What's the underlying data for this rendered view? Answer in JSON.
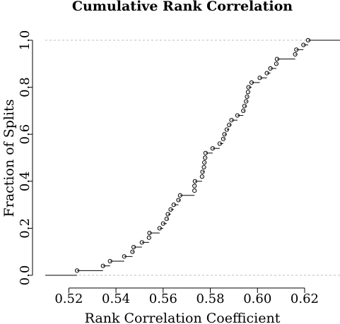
{
  "chart_data": {
    "type": "ecdf",
    "title": "Cumulative Rank Correlation",
    "xlabel": "Rank Correlation Coefficient",
    "ylabel": "Fraction of Splits",
    "xlim": [
      0.51,
      0.635
    ],
    "ylim": [
      0.0,
      1.0
    ],
    "x_ticks": [
      0.52,
      0.54,
      0.56,
      0.58,
      0.6,
      0.62
    ],
    "x_tick_labels": [
      "0.52",
      "0.54",
      "0.56",
      "0.58",
      "0.60",
      "0.62"
    ],
    "y_ticks": [
      0.0,
      0.2,
      0.4,
      0.6,
      0.8,
      1.0
    ],
    "y_tick_labels": [
      "0.0",
      "0.2",
      "0.4",
      "0.6",
      "0.8",
      "1.0"
    ],
    "reference_lines": [
      0.0,
      1.0
    ],
    "grid": false,
    "points": [
      {
        "x": 0.5235,
        "y": 0.02
      },
      {
        "x": 0.5345,
        "y": 0.04
      },
      {
        "x": 0.5375,
        "y": 0.06
      },
      {
        "x": 0.5435,
        "y": 0.08
      },
      {
        "x": 0.547,
        "y": 0.1
      },
      {
        "x": 0.5475,
        "y": 0.12
      },
      {
        "x": 0.551,
        "y": 0.14
      },
      {
        "x": 0.554,
        "y": 0.16
      },
      {
        "x": 0.5542,
        "y": 0.18
      },
      {
        "x": 0.5585,
        "y": 0.2
      },
      {
        "x": 0.56,
        "y": 0.22
      },
      {
        "x": 0.5615,
        "y": 0.24
      },
      {
        "x": 0.562,
        "y": 0.26
      },
      {
        "x": 0.5632,
        "y": 0.28
      },
      {
        "x": 0.5645,
        "y": 0.3
      },
      {
        "x": 0.5665,
        "y": 0.32
      },
      {
        "x": 0.5672,
        "y": 0.34
      },
      {
        "x": 0.5733,
        "y": 0.36
      },
      {
        "x": 0.5733,
        "y": 0.38
      },
      {
        "x": 0.5735,
        "y": 0.4
      },
      {
        "x": 0.5765,
        "y": 0.42
      },
      {
        "x": 0.5767,
        "y": 0.44
      },
      {
        "x": 0.5773,
        "y": 0.46
      },
      {
        "x": 0.5775,
        "y": 0.48
      },
      {
        "x": 0.5778,
        "y": 0.5
      },
      {
        "x": 0.578,
        "y": 0.52
      },
      {
        "x": 0.581,
        "y": 0.54
      },
      {
        "x": 0.584,
        "y": 0.56
      },
      {
        "x": 0.5855,
        "y": 0.58
      },
      {
        "x": 0.586,
        "y": 0.6
      },
      {
        "x": 0.587,
        "y": 0.62
      },
      {
        "x": 0.588,
        "y": 0.64
      },
      {
        "x": 0.589,
        "y": 0.66
      },
      {
        "x": 0.5915,
        "y": 0.68
      },
      {
        "x": 0.594,
        "y": 0.7
      },
      {
        "x": 0.5945,
        "y": 0.72
      },
      {
        "x": 0.5952,
        "y": 0.74
      },
      {
        "x": 0.5956,
        "y": 0.76
      },
      {
        "x": 0.596,
        "y": 0.78
      },
      {
        "x": 0.5962,
        "y": 0.8
      },
      {
        "x": 0.5975,
        "y": 0.82
      },
      {
        "x": 0.601,
        "y": 0.84
      },
      {
        "x": 0.604,
        "y": 0.86
      },
      {
        "x": 0.6055,
        "y": 0.88
      },
      {
        "x": 0.608,
        "y": 0.9
      },
      {
        "x": 0.6083,
        "y": 0.92
      },
      {
        "x": 0.616,
        "y": 0.94
      },
      {
        "x": 0.6165,
        "y": 0.96
      },
      {
        "x": 0.6195,
        "y": 0.98
      },
      {
        "x": 0.6215,
        "y": 1.0
      }
    ]
  }
}
